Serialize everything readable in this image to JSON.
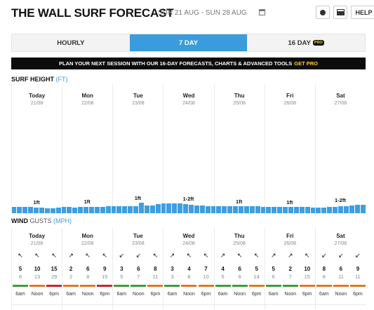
{
  "header": {
    "title": "THE WALL SURF FORECAST",
    "dates": "SUN 21 AUG - SUN 28 AUG",
    "help_label": "HELP"
  },
  "tabs": [
    {
      "label": "HOURLY",
      "active": false
    },
    {
      "label": "7 DAY",
      "active": true
    },
    {
      "label": "16 DAY",
      "active": false,
      "badge": "PRO"
    }
  ],
  "banner": {
    "text": "PLAN YOUR NEXT SESSION WITH OUR 16-DAY FORECASTS, CHARTS & ADVANCED TOOLS",
    "cta": "GET PRO"
  },
  "surf": {
    "title": "SURF HEIGHT",
    "unit": "(FT)",
    "days": [
      {
        "name": "Today",
        "date": "21/08",
        "label": "1ft"
      },
      {
        "name": "Mon",
        "date": "22/08",
        "label": "1ft"
      },
      {
        "name": "Tue",
        "date": "23/08",
        "label": "1ft"
      },
      {
        "name": "Wed",
        "date": "24/08",
        "label": "1-2ft"
      },
      {
        "name": "Thu",
        "date": "25/08",
        "label": "1ft"
      },
      {
        "name": "Fri",
        "date": "26/08",
        "label": "1ft"
      },
      {
        "name": "Sat",
        "date": "27/08",
        "label": "1-2ft"
      }
    ],
    "heights_ft": [
      1.1,
      1.1,
      1.1,
      1.1,
      1.0,
      1.0,
      0.9,
      0.9,
      1.0,
      1.1,
      1.1,
      1.0,
      1.1,
      1.1,
      1.1,
      1.1,
      1.1,
      1.2,
      1.2,
      1.2,
      1.2,
      1.2,
      1.2,
      1.9,
      1.4,
      1.4,
      1.6,
      1.7,
      1.8,
      1.8,
      1.7,
      1.6,
      1.5,
      1.4,
      1.4,
      1.3,
      1.3,
      1.2,
      1.2,
      1.2,
      1.2,
      1.2,
      1.2,
      1.2,
      1.2,
      1.1,
      1.1,
      1.1,
      1.1,
      1.1,
      1.1,
      1.1,
      1.1,
      1.1,
      1.0,
      1.0,
      1.0,
      1.1,
      1.1,
      1.2,
      1.3,
      1.4,
      1.5,
      1.5
    ]
  },
  "wind": {
    "title": "WIND",
    "unit_label": "GUSTS",
    "unit": "(MPH)",
    "days": [
      {
        "name": "Today",
        "date": "21/08",
        "slots": [
          {
            "time": "6am",
            "speed": "5",
            "gust": "6",
            "arrow": "↖",
            "color": "#3aa03a"
          },
          {
            "time": "Noon",
            "speed": "10",
            "gust": "13",
            "arrow": "↖",
            "color": "#e07a1a"
          },
          {
            "time": "6pm",
            "speed": "15",
            "gust": "29",
            "arrow": "↖",
            "color": "#c62828"
          }
        ]
      },
      {
        "name": "Mon",
        "date": "22/08",
        "slots": [
          {
            "time": "6am",
            "speed": "2",
            "gust": "2",
            "arrow": "↗",
            "color": "#e07a1a"
          },
          {
            "time": "Noon",
            "speed": "6",
            "gust": "8",
            "arrow": "↖",
            "color": "#e07a1a"
          },
          {
            "time": "6pm",
            "speed": "9",
            "gust": "15",
            "arrow": "↖",
            "color": "#c62828"
          }
        ]
      },
      {
        "name": "Tue",
        "date": "23/08",
        "slots": [
          {
            "time": "6am",
            "speed": "3",
            "gust": "5",
            "arrow": "↙",
            "color": "#3aa03a"
          },
          {
            "time": "Noon",
            "speed": "6",
            "gust": "7",
            "arrow": "↙",
            "color": "#3aa03a"
          },
          {
            "time": "6pm",
            "speed": "8",
            "gust": "11",
            "arrow": "↖",
            "color": "#e07a1a"
          }
        ]
      },
      {
        "name": "Wed",
        "date": "24/08",
        "slots": [
          {
            "time": "6am",
            "speed": "3",
            "gust": "3",
            "arrow": "↗",
            "color": "#3aa03a"
          },
          {
            "time": "Noon",
            "speed": "4",
            "gust": "8",
            "arrow": "↖",
            "color": "#e07a1a"
          },
          {
            "time": "6pm",
            "speed": "7",
            "gust": "10",
            "arrow": "↖",
            "color": "#e07a1a"
          }
        ]
      },
      {
        "name": "Thu",
        "date": "25/08",
        "slots": [
          {
            "time": "6am",
            "speed": "4",
            "gust": "5",
            "arrow": "↗",
            "color": "#3aa03a"
          },
          {
            "time": "Noon",
            "speed": "6",
            "gust": "6",
            "arrow": "↖",
            "color": "#3aa03a"
          },
          {
            "time": "6pm",
            "speed": "5",
            "gust": "14",
            "arrow": "↖",
            "color": "#e07a1a"
          }
        ]
      },
      {
        "name": "Fri",
        "date": "26/08",
        "slots": [
          {
            "time": "6am",
            "speed": "5",
            "gust": "6",
            "arrow": "↗",
            "color": "#3aa03a"
          },
          {
            "time": "Noon",
            "speed": "2",
            "gust": "7",
            "arrow": "↗",
            "color": "#3aa03a"
          },
          {
            "time": "6pm",
            "speed": "10",
            "gust": "15",
            "arrow": "↖",
            "color": "#e07a1a"
          }
        ]
      },
      {
        "name": "Sat",
        "date": "27/08",
        "slots": [
          {
            "time": "6am",
            "speed": "8",
            "gust": "8",
            "arrow": "↙",
            "color": "#e07a1a"
          },
          {
            "time": "Noon",
            "speed": "6",
            "gust": "11",
            "arrow": "↙",
            "color": "#e07a1a"
          },
          {
            "time": "6pm",
            "speed": "9",
            "gust": "11",
            "arrow": "↙",
            "color": "#e07a1a"
          }
        ]
      }
    ]
  }
}
